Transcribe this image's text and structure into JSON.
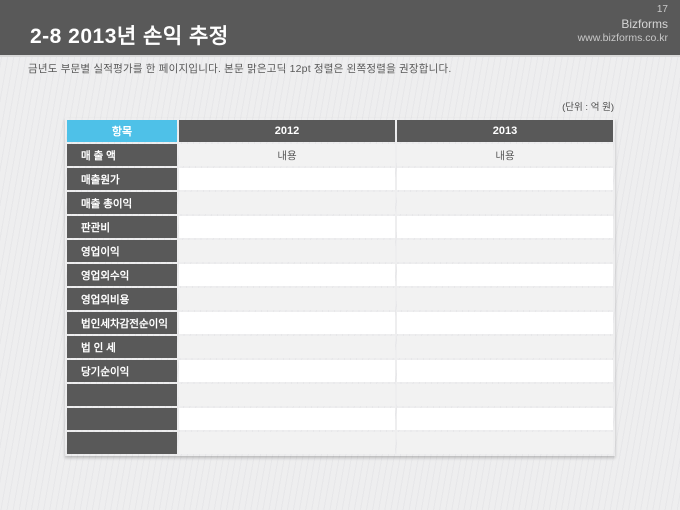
{
  "header": {
    "title": "2-8 2013년 손익 추정",
    "page_number": "17",
    "brand": "Bizforms",
    "website": "www.bizforms.co.kr"
  },
  "subtitle": "금년도 부문별 실적평가를 한 페이지입니다. 본문 맑은고딕 12pt 정렬은 왼쪽정렬을 권장합니다.",
  "unit_label": "(단위 : 억 원)",
  "table": {
    "columns": [
      "항목",
      "2012",
      "2013"
    ],
    "rows": [
      {
        "label": "매 출 액",
        "values": [
          "내용",
          "내용"
        ]
      },
      {
        "label": "매출원가",
        "values": [
          "",
          ""
        ]
      },
      {
        "label": "매출 총이익",
        "values": [
          "",
          ""
        ]
      },
      {
        "label": "판관비",
        "values": [
          "",
          ""
        ]
      },
      {
        "label": "영업이익",
        "values": [
          "",
          ""
        ]
      },
      {
        "label": "영업외수익",
        "values": [
          "",
          ""
        ]
      },
      {
        "label": "영업외비용",
        "values": [
          "",
          ""
        ]
      },
      {
        "label": "법인세차감전순이익",
        "values": [
          "",
          ""
        ]
      },
      {
        "label": "법 인 세",
        "values": [
          "",
          ""
        ]
      },
      {
        "label": "당기순이익",
        "values": [
          "",
          ""
        ]
      },
      {
        "label": "",
        "values": [
          "",
          ""
        ]
      },
      {
        "label": "",
        "values": [
          "",
          ""
        ]
      },
      {
        "label": "",
        "values": [
          "",
          ""
        ]
      }
    ]
  },
  "colors": {
    "header_band": "#595959",
    "accent_cyan": "#4ec1e8",
    "label_cell": "#595959",
    "row_shaded": "#f2f2f2",
    "row_plain": "#ffffff",
    "background": "#ececee"
  }
}
